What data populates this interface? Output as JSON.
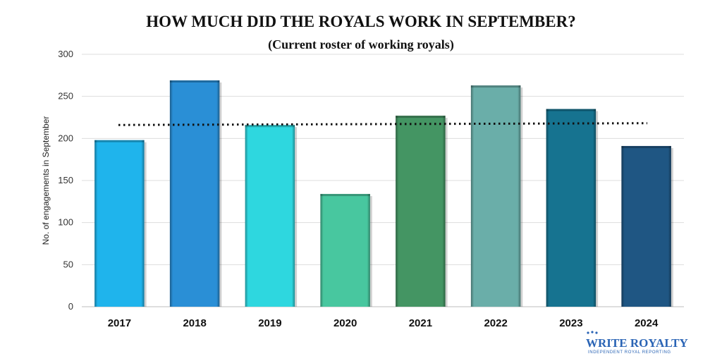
{
  "chart_data": {
    "type": "bar",
    "title": "HOW MUCH DID THE ROYALS WORK IN SEPTEMBER?",
    "subtitle": "(Current roster of working royals)",
    "ylabel": "No. of engagements in September",
    "xlabel": "",
    "categories": [
      "2017",
      "2018",
      "2019",
      "2020",
      "2021",
      "2022",
      "2023",
      "2024"
    ],
    "values": [
      198,
      269,
      216,
      134,
      227,
      263,
      235,
      191
    ],
    "colors": [
      "#1fb4ec",
      "#2a8fd6",
      "#2ed7df",
      "#48c79f",
      "#449563",
      "#6aaea9",
      "#167390",
      "#1f5683"
    ],
    "ylim": [
      0,
      300
    ],
    "yticks": [
      0,
      50,
      100,
      150,
      200,
      250,
      300
    ],
    "average_line": {
      "style": "dotted",
      "values": [
        216,
        216.3,
        216.6,
        216.9,
        217.2,
        217.5,
        217.8,
        218.1
      ],
      "color": "#111111"
    },
    "grid": "horizontal",
    "legend": "none"
  },
  "brand": {
    "name_part1": "WRITE",
    "name_part2": "ROYALTY",
    "tagline": "INDEPENDENT ROYAL REPORTING",
    "color": "#2a64b5"
  }
}
